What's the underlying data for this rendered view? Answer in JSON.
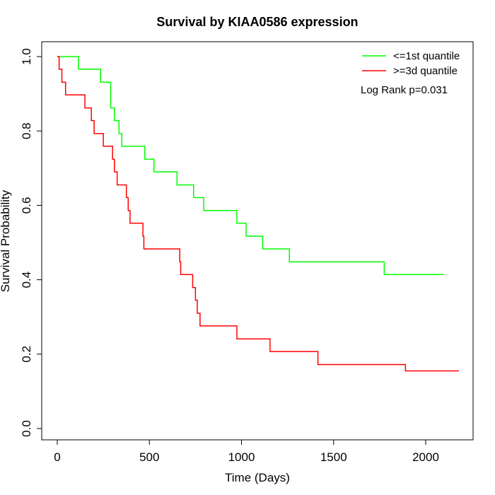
{
  "chart_data": {
    "type": "line",
    "step": true,
    "title": "Survival by KIAA0586 expression",
    "xlabel": "Time (Days)",
    "ylabel": "Survival Probability",
    "xlim": [
      0,
      2250
    ],
    "ylim": [
      0,
      1.0
    ],
    "xticks": [
      0,
      500,
      1000,
      1500,
      2000
    ],
    "xtick_labels": [
      "0",
      "500",
      "1000",
      "1500",
      "2000"
    ],
    "yticks": [
      0.0,
      0.2,
      0.4,
      0.6,
      0.8,
      1.0
    ],
    "ytick_labels": [
      "0.0",
      "0.2",
      "0.4",
      "0.6",
      "0.8",
      "1.0"
    ],
    "grid": false,
    "legend_position": "top-right",
    "annotation": "Log Rank p=0.031",
    "series": [
      {
        "name": "<=1st quantile",
        "color": "#00ff00",
        "x": [
          0,
          115,
          235,
          290,
          310,
          335,
          350,
          475,
          525,
          650,
          740,
          795,
          975,
          1025,
          1115,
          1260,
          1775,
          2100
        ],
        "y": [
          1.0,
          0.966,
          0.931,
          0.862,
          0.828,
          0.793,
          0.759,
          0.724,
          0.69,
          0.655,
          0.621,
          0.586,
          0.552,
          0.517,
          0.483,
          0.448,
          0.414,
          0.414
        ]
      },
      {
        "name": ">=3d quantile",
        "color": "#ff0000",
        "x": [
          0,
          10,
          25,
          45,
          150,
          185,
          200,
          250,
          300,
          310,
          325,
          375,
          385,
          395,
          465,
          470,
          665,
          670,
          735,
          750,
          760,
          775,
          975,
          1155,
          1415,
          1890,
          2180
        ],
        "y": [
          1.0,
          0.966,
          0.931,
          0.897,
          0.862,
          0.828,
          0.793,
          0.759,
          0.724,
          0.69,
          0.655,
          0.621,
          0.586,
          0.552,
          0.517,
          0.483,
          0.448,
          0.414,
          0.379,
          0.345,
          0.31,
          0.276,
          0.241,
          0.207,
          0.172,
          0.155,
          0.155
        ]
      }
    ]
  }
}
